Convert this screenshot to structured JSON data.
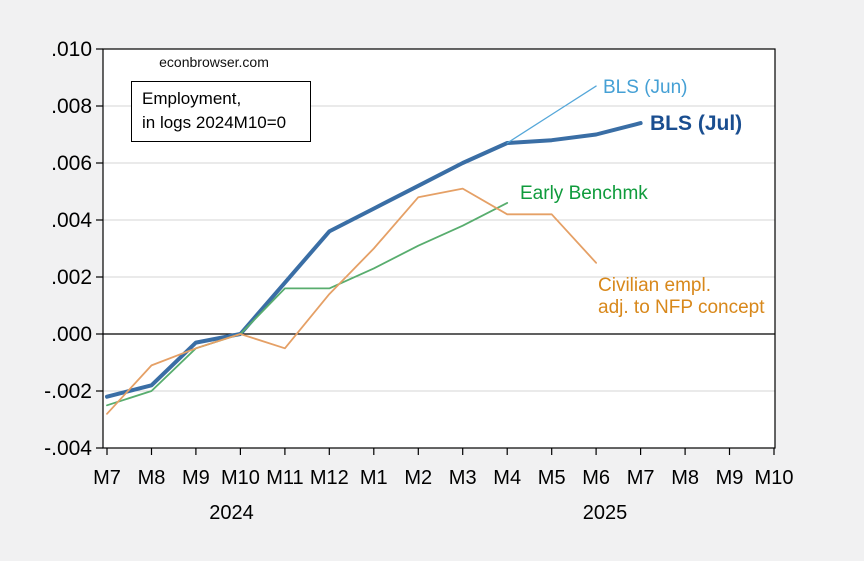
{
  "watermark": "econbrowser.com",
  "note_box": {
    "line1": "Employment,",
    "line2": "in logs 2024M10=0"
  },
  "chart_data": {
    "type": "line",
    "title": "Employment, in logs 2024M10=0",
    "watermark": "econbrowser.com",
    "grid": "horizontal",
    "legend_position": "inline-labels",
    "ylim": [
      -0.004,
      0.01
    ],
    "ytick_values": [
      0.01,
      0.008,
      0.006,
      0.004,
      0.002,
      0.0,
      -0.002,
      -0.004
    ],
    "ytick_labels": [
      ".010",
      ".008",
      ".006",
      ".004",
      ".002",
      ".000",
      "-.002",
      "-.004"
    ],
    "x_tick_labels": [
      "M7",
      "M8",
      "M9",
      "M10",
      "M11",
      "M12",
      "M1",
      "M2",
      "M3",
      "M4",
      "M5",
      "M6",
      "M7",
      "M8",
      "M9",
      "M10"
    ],
    "x_categories": [
      "2024M7",
      "2024M8",
      "2024M9",
      "2024M10",
      "2024M11",
      "2024M12",
      "2025M1",
      "2025M2",
      "2025M3",
      "2025M4",
      "2025M5",
      "2025M6",
      "2025M7",
      "2025M8",
      "2025M9",
      "2025M10"
    ],
    "year_labels": [
      {
        "label": "2024",
        "tick_index": 2.8
      },
      {
        "label": "2025",
        "tick_index": 11.2
      }
    ],
    "series": [
      {
        "name": "BLS (Jul)",
        "color": "#3a6ea5",
        "label_color": "#1a4e90",
        "line_width": 4,
        "values": [
          -0.0022,
          -0.0018,
          -0.0003,
          0.0,
          0.0018,
          0.0036,
          0.0044,
          0.0052,
          0.006,
          0.0067,
          0.0068,
          0.007,
          0.0074,
          null,
          null,
          null
        ]
      },
      {
        "name": "BLS (Jun)",
        "color": "#55a7d9",
        "label_color": "#45a0d5",
        "line_width": 1.3,
        "values": [
          null,
          null,
          null,
          null,
          null,
          null,
          null,
          null,
          null,
          0.0067,
          0.0077,
          0.0087,
          null,
          null,
          null,
          null
        ]
      },
      {
        "name": "Early Benchmk",
        "color": "#58ad6e",
        "label_color": "#0f9b3c",
        "line_width": 1.8,
        "values": [
          -0.0025,
          -0.002,
          -0.0005,
          0.0,
          0.0016,
          0.0016,
          0.0023,
          0.0031,
          0.0038,
          0.0046,
          null,
          null,
          null,
          null,
          null,
          null
        ]
      },
      {
        "name": "Civilian empl. adj. to NFP concept",
        "color": "#e5a066",
        "label_color": "#d8881b",
        "line_width": 1.8,
        "label_lines": [
          "Civilian empl.",
          "adj. to NFP concept"
        ],
        "values": [
          -0.0028,
          -0.0011,
          -0.0005,
          0.0,
          -0.0005,
          0.0014,
          0.003,
          0.0048,
          0.0051,
          0.0042,
          0.0042,
          0.0025,
          null,
          null,
          null,
          null
        ]
      }
    ]
  }
}
